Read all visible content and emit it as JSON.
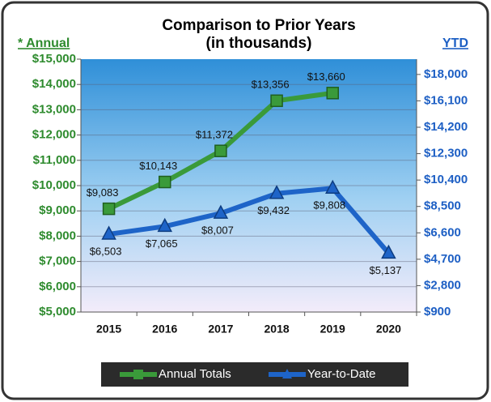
{
  "chart_data": {
    "type": "line",
    "title": "Comparison to Prior Years",
    "subtitle": "(in thousands)",
    "ylabel": "* Annual",
    "y2label": "YTD",
    "categories": [
      "2015",
      "2016",
      "2017",
      "2018",
      "2019",
      "2020"
    ],
    "series": [
      {
        "name": "Annual Totals",
        "color": "#3a9a3a",
        "marker": "square",
        "values": [
          9083,
          10143,
          11372,
          13356,
          13660,
          null
        ],
        "value_labels": [
          "$9,083",
          "$10,143",
          "$11,372",
          "$13,356",
          "$13,660",
          null
        ]
      },
      {
        "name": "Year-to-Date",
        "color": "#1e64c8",
        "marker": "triangle",
        "axis": "y2",
        "values": [
          6503,
          7065,
          8007,
          9432,
          9808,
          5137
        ],
        "value_labels": [
          "$6,503",
          "$7,065",
          "$8,007",
          "$9,432",
          "$9,808",
          "$5,137"
        ]
      }
    ],
    "ylim": [
      5000,
      15000
    ],
    "yticks": [
      {
        "value": 5000,
        "label": "$5,000"
      },
      {
        "value": 6000,
        "label": "$6,000"
      },
      {
        "value": 7000,
        "label": "$7,000"
      },
      {
        "value": 8000,
        "label": "$8,000"
      },
      {
        "value": 9000,
        "label": "$9,000"
      },
      {
        "value": 10000,
        "label": "$10,000"
      },
      {
        "value": 11000,
        "label": "$11,000"
      },
      {
        "value": 12000,
        "label": "$12,000"
      },
      {
        "value": 13000,
        "label": "$13,000"
      },
      {
        "value": 14000,
        "label": "$14,000"
      },
      {
        "value": 15000,
        "label": "$15,000"
      }
    ],
    "y2lim": [
      900,
      19100
    ],
    "y2ticks": [
      {
        "value": 900,
        "label": "$900"
      },
      {
        "value": 2800,
        "label": "$2,800"
      },
      {
        "value": 4700,
        "label": "$4,700"
      },
      {
        "value": 6600,
        "label": "$6,600"
      },
      {
        "value": 8500,
        "label": "$8,500"
      },
      {
        "value": 10400,
        "label": "$10,400"
      },
      {
        "value": 12300,
        "label": "$12,300"
      },
      {
        "value": 14200,
        "label": "$14,200"
      },
      {
        "value": 16100,
        "label": "$16,100"
      },
      {
        "value": 18000,
        "label": "$18,000"
      }
    ],
    "grid": true,
    "legend": "bottom"
  }
}
